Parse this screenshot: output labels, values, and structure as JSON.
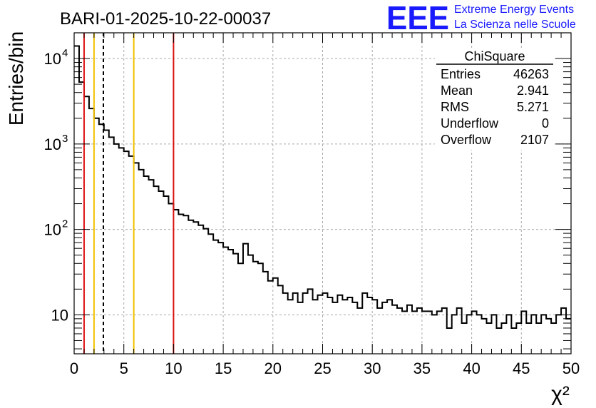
{
  "header": {
    "run_title": "BARI-01-2025-10-22-00037",
    "logo_text": "EEE",
    "logo_line1": "Extreme Energy Events",
    "logo_line2": "La Scienza nelle Scuole"
  },
  "colors": {
    "logo_blue": "#1a1aff",
    "red_line": "#dd1111",
    "yellow_line": "#f0c000",
    "grid": "#aaaaaa",
    "histogram": "#000000"
  },
  "stats_box": {
    "title": "ChiSquare",
    "rows": [
      {
        "label": "Entries",
        "value": "46263"
      },
      {
        "label": "Mean",
        "value": "2.941"
      },
      {
        "label": "RMS",
        "value": "5.271"
      },
      {
        "label": "Underflow",
        "value": "0"
      },
      {
        "label": "Overflow",
        "value": "2107"
      }
    ]
  },
  "chart_data": {
    "type": "histogram",
    "title": "BARI-01-2025-10-22-00037",
    "xlabel": "χ²",
    "ylabel": "Entries/bin",
    "xlim": [
      0,
      50
    ],
    "ylim": [
      3.5,
      20000
    ],
    "yscale": "log",
    "grid": true,
    "bin_width": 0.5,
    "x_ticks": [
      {
        "value": 0,
        "label": "0"
      },
      {
        "value": 5,
        "label": "5"
      },
      {
        "value": 10,
        "label": "10"
      },
      {
        "value": 15,
        "label": "15"
      },
      {
        "value": 20,
        "label": "20"
      },
      {
        "value": 25,
        "label": "25"
      },
      {
        "value": 30,
        "label": "30"
      },
      {
        "value": 35,
        "label": "35"
      },
      {
        "value": 40,
        "label": "40"
      },
      {
        "value": 45,
        "label": "45"
      },
      {
        "value": 50,
        "label": "50"
      }
    ],
    "y_ticks": [
      {
        "value": 10,
        "label": "10"
      },
      {
        "value": 100,
        "label": "10",
        "sup": "2"
      },
      {
        "value": 1000,
        "label": "10",
        "sup": "3"
      },
      {
        "value": 10000,
        "label": "10",
        "sup": "4"
      }
    ],
    "vertical_lines": [
      {
        "x": 1,
        "color": "red",
        "style": "solid"
      },
      {
        "x": 2,
        "color": "yellow",
        "style": "solid"
      },
      {
        "x": 2.941,
        "color": "black",
        "style": "dashed"
      },
      {
        "x": 6,
        "color": "yellow",
        "style": "solid"
      },
      {
        "x": 10,
        "color": "red",
        "style": "solid"
      }
    ],
    "bin_contents": [
      14000,
      5300,
      3600,
      2600,
      2000,
      1700,
      1450,
      1200,
      1000,
      900,
      820,
      720,
      600,
      500,
      420,
      380,
      320,
      280,
      245,
      200,
      170,
      150,
      145,
      128,
      122,
      112,
      102,
      88,
      75,
      70,
      62,
      58,
      52,
      40,
      68,
      50,
      42,
      40,
      32,
      25,
      27,
      22,
      18,
      15,
      18,
      14,
      18,
      20,
      15,
      17,
      18,
      16,
      14,
      17,
      15,
      16,
      14,
      12,
      18,
      16,
      15,
      12,
      14,
      15,
      13,
      12,
      11,
      13,
      11,
      12,
      11,
      11,
      10,
      11,
      12,
      7,
      10,
      12,
      8,
      10,
      11,
      10,
      9,
      8,
      10,
      7,
      8,
      10,
      7,
      8,
      11,
      8,
      10,
      8,
      10,
      9,
      8,
      10,
      12,
      9
    ]
  }
}
